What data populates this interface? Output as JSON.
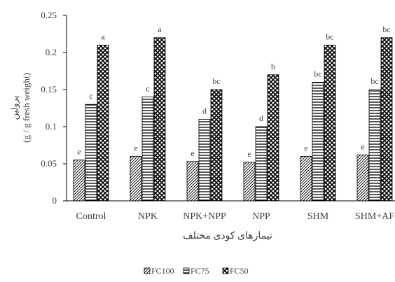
{
  "chart_data": {
    "type": "bar",
    "xlabel": "تیمارهای کودی مختلف",
    "ylabel_fa": "پرولین",
    "ylabel_en": "(g / g fresh weight)",
    "ylim": [
      0,
      0.25
    ],
    "yticks": [
      "0",
      "0.05",
      "0.1",
      "0.15",
      "0.2",
      "0.25"
    ],
    "grid": false,
    "legend_position": "bottom-center",
    "categories": [
      "Control",
      "NPK",
      "NPK+NPP",
      "NPP",
      "SHM",
      "SHM+AF"
    ],
    "series": [
      {
        "name": "FC100",
        "pattern": "diagonal-hatch",
        "values": [
          0.055,
          0.06,
          0.053,
          0.052,
          0.06,
          0.062
        ],
        "labels": [
          "e",
          "e",
          "e",
          "e",
          "e",
          "e"
        ]
      },
      {
        "name": "FC75",
        "pattern": "horizontal-lines",
        "values": [
          0.13,
          0.14,
          0.11,
          0.1,
          0.16,
          0.15
        ],
        "labels": [
          "c",
          "c",
          "d",
          "d",
          "bc",
          "bc"
        ]
      },
      {
        "name": "FC50",
        "pattern": "diamond-weave",
        "values": [
          0.21,
          0.22,
          0.15,
          0.17,
          0.21,
          0.22
        ],
        "labels": [
          "a",
          "a",
          "bc",
          "b",
          "bc",
          "bc"
        ]
      }
    ],
    "colors": {
      "stroke": "#000000",
      "text": "#404040",
      "axis": "#000000"
    }
  }
}
